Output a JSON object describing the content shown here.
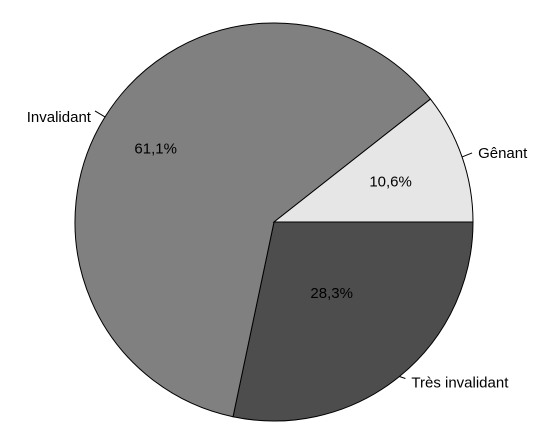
{
  "chart_data": {
    "type": "pie",
    "title": "",
    "start": "right, clockwise",
    "slices": [
      {
        "label": "Très invalidant",
        "value": 28.3,
        "value_label": "28,3%",
        "color": "#4d4d4d"
      },
      {
        "label": "Invalidant",
        "value": 61.1,
        "value_label": "61,1%",
        "color": "#808080"
      },
      {
        "label": "Gênant",
        "value": 10.6,
        "value_label": "10,6%",
        "color": "#e6e6e6"
      }
    ]
  }
}
